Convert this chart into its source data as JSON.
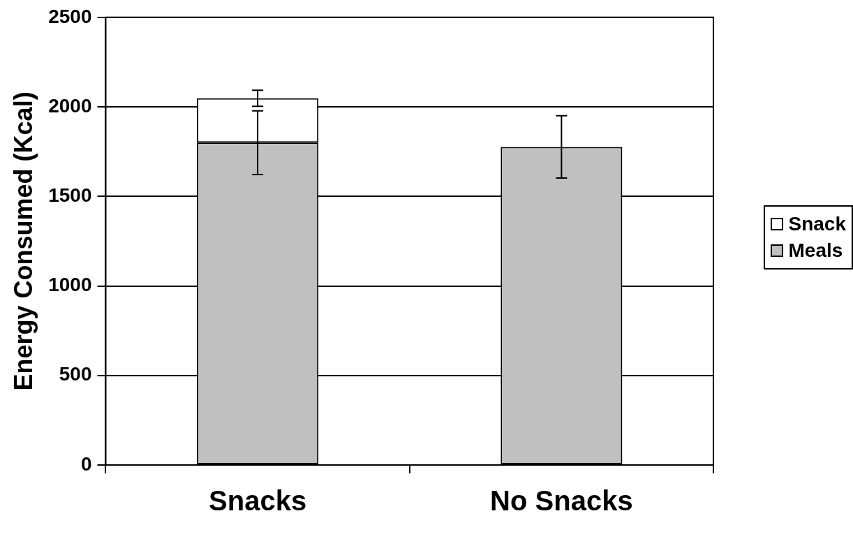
{
  "chart_data": {
    "type": "bar",
    "stacked": true,
    "ylabel": "Energy Consumed (Kcal)",
    "categories": [
      "Snacks",
      "No Snacks"
    ],
    "series": [
      {
        "name": "Meals",
        "color": "#c0c0c0",
        "values": [
          1800,
          1776
        ],
        "errors": [
          178,
          174
        ]
      },
      {
        "name": "Snack",
        "color": "#ffffff",
        "values": [
          248,
          null
        ],
        "errors": [
          45,
          null
        ]
      }
    ],
    "ylim": [
      0,
      2500
    ],
    "yticks": [
      0,
      500,
      1000,
      1500,
      2000,
      2500
    ],
    "grid": "y",
    "legend": "right"
  }
}
